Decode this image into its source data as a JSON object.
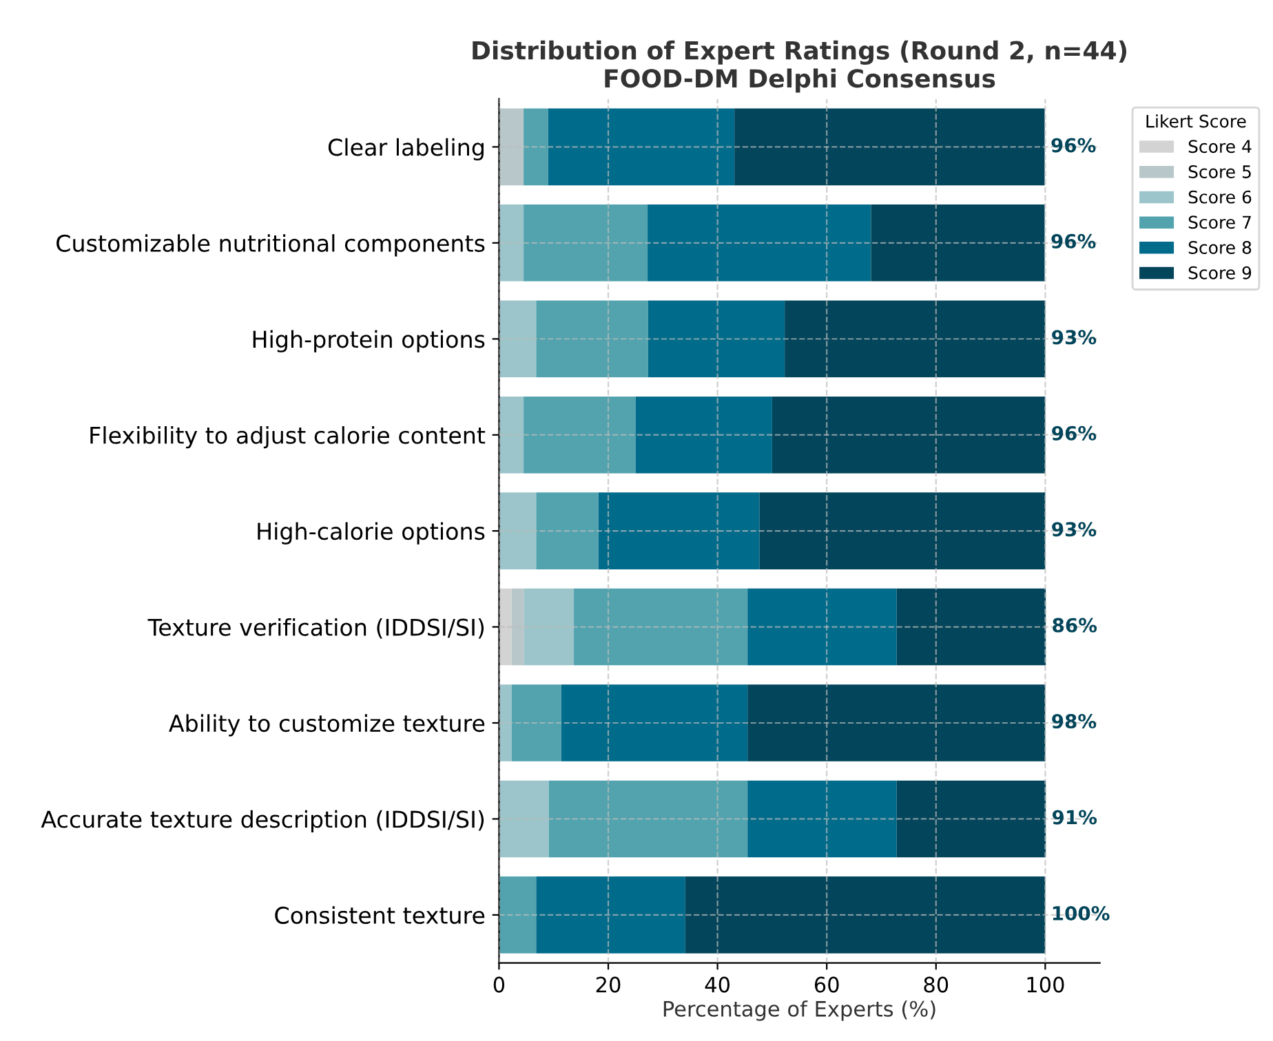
{
  "chart_data": {
    "type": "bar",
    "orientation": "horizontal",
    "stacked": true,
    "title": "Distribution of Expert Ratings (Round 2, n=44)\nFOOD-DM Delphi Consensus",
    "xlabel": "Percentage of Experts (%)",
    "legend_title": "Likert Score",
    "legend": "top right",
    "grid": true,
    "categories": [
      "Clear labeling",
      "Customizable nutritional components",
      "High-protein options",
      "Flexibility to adjust calorie content",
      "High-calorie options",
      "Texture verification (IDDSI/SI)",
      "Ability to customize texture",
      "Accurate texture description (IDDSI/SI)",
      "Consistent texture"
    ],
    "series": [
      {
        "name": "Score 4",
        "color": "#d3d3d3",
        "values": [
          0,
          0,
          0,
          0,
          0,
          2.3,
          0,
          0,
          0
        ]
      },
      {
        "name": "Score 5",
        "color": "#b8c7c9",
        "values": [
          4.5,
          0,
          0,
          0,
          0,
          2.3,
          0,
          0,
          0
        ]
      },
      {
        "name": "Score 6",
        "color": "#9cc5cb",
        "values": [
          0,
          4.5,
          6.8,
          4.5,
          6.8,
          9.1,
          2.3,
          9.1,
          0
        ]
      },
      {
        "name": "Score 7",
        "color": "#52a3ae",
        "values": [
          4.5,
          22.7,
          20.5,
          20.5,
          11.4,
          31.8,
          9.1,
          36.4,
          6.8
        ]
      },
      {
        "name": "Score 8",
        "color": "#006b8a",
        "values": [
          34.1,
          40.9,
          25.0,
          25.0,
          29.5,
          27.3,
          34.1,
          27.3,
          27.3
        ]
      },
      {
        "name": "Score 9",
        "color": "#03455a",
        "values": [
          56.8,
          31.8,
          47.7,
          50.0,
          52.3,
          27.3,
          54.5,
          27.3,
          65.9
        ]
      }
    ],
    "annotations": [
      "96%",
      "96%",
      "93%",
      "96%",
      "93%",
      "86%",
      "98%",
      "91%",
      "100%"
    ],
    "xlim": [
      0,
      110
    ],
    "xticks": [
      0,
      20,
      40,
      60,
      80,
      100
    ]
  }
}
